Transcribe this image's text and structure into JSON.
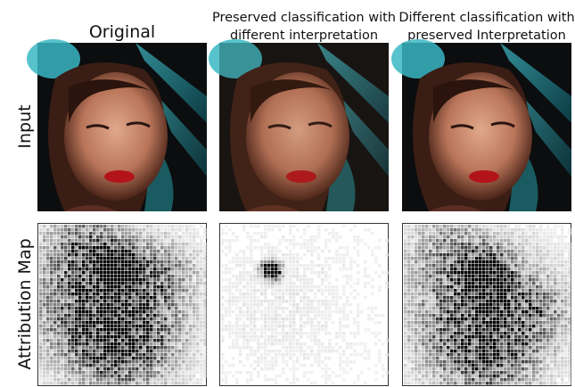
{
  "columns": [
    {
      "title_lines": [
        "Original"
      ]
    },
    {
      "title_lines": [
        "Preserved classification with",
        "different interpretation"
      ]
    },
    {
      "title_lines": [
        "Different classification with",
        "preserved Interpretation"
      ]
    }
  ],
  "rows": [
    {
      "label": "Input"
    },
    {
      "label": "Attribution Map"
    }
  ]
}
